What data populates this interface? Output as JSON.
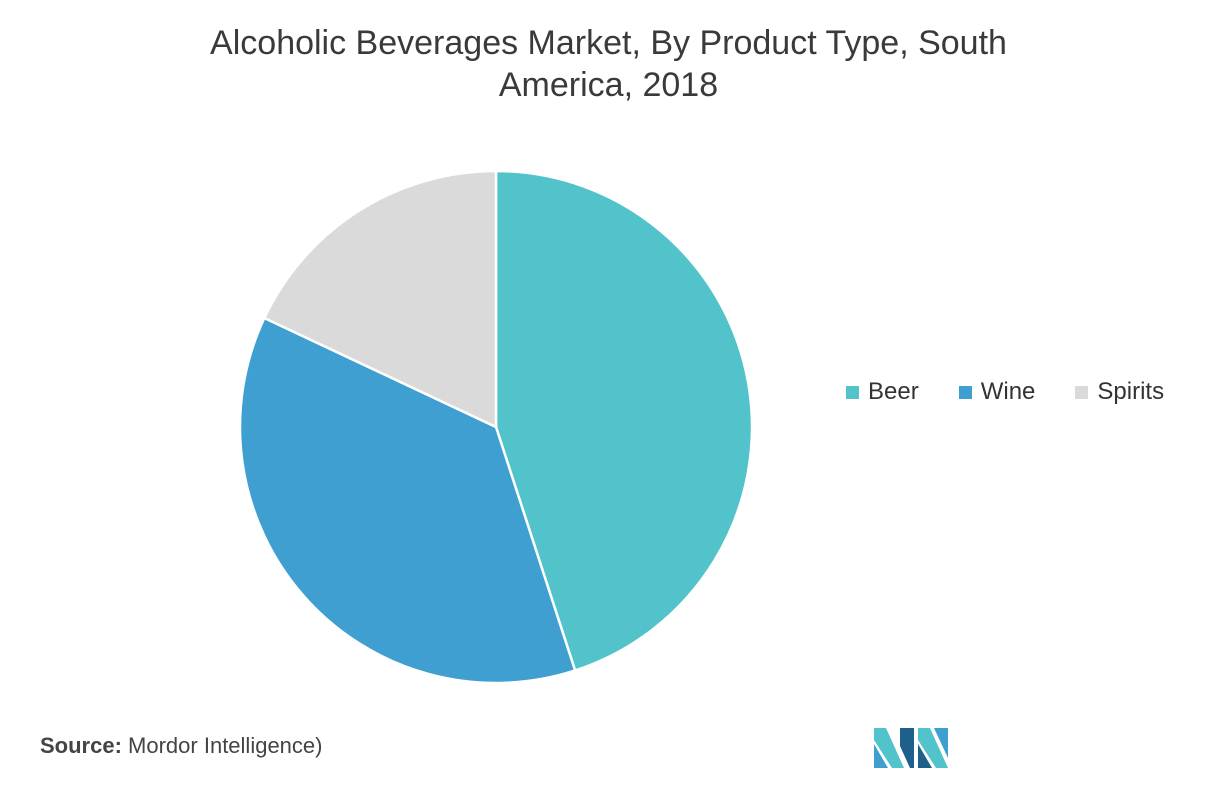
{
  "title_line1": "Alcoholic Beverages Market, By Product Type, South",
  "title_line2": "America, 2018",
  "chart_data": {
    "type": "pie",
    "title": "Alcoholic Beverages Market, By Product Type, South America, 2018",
    "slices": [
      {
        "label": "Beer",
        "value": 45,
        "color": "#52c3ca"
      },
      {
        "label": "Wine",
        "value": 37,
        "color": "#3e9fd0"
      },
      {
        "label": "Spirits",
        "value": 18,
        "color": "#dadada"
      }
    ],
    "legend_position": "right",
    "start": "top, clockwise"
  },
  "source": {
    "label": "Source:",
    "text": "Mordor Intelligence)"
  },
  "logo": {
    "name": "mordor-intelligence-logo",
    "colors": [
      "#52c3ca",
      "#3e9fd0",
      "#1f5f8b"
    ]
  }
}
